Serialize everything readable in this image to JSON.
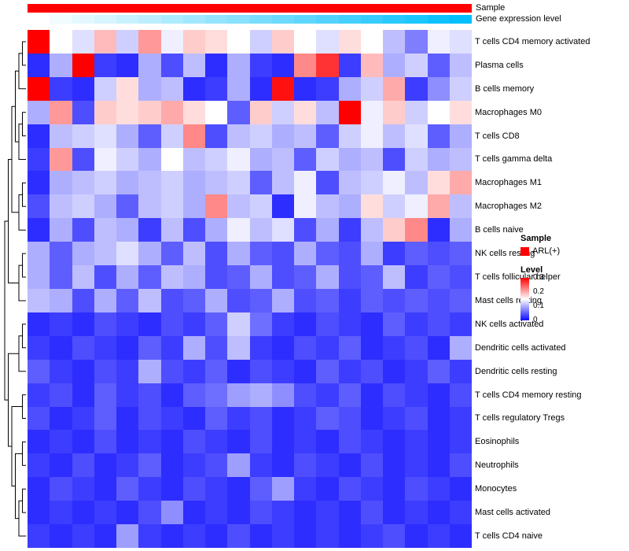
{
  "annotations": {
    "sample_label": "Sample",
    "gene_label": "Gene expression level",
    "sample_color": "#FF0000",
    "gene_gradient_low": "#FFFFFF",
    "gene_gradient_high": "#00BFFF",
    "gene_values": [
      0,
      0.05,
      0.11,
      0.16,
      0.21,
      0.26,
      0.32,
      0.37,
      0.42,
      0.47,
      0.53,
      0.58,
      0.63,
      0.68,
      0.74,
      0.79,
      0.84,
      0.89,
      0.95,
      1.0
    ]
  },
  "legend": {
    "sample_title": "Sample",
    "sample_items": [
      {
        "label": "ARL(+)",
        "color": "#FF0000"
      }
    ],
    "level_title": "Level",
    "level_ticks": [
      "0.3",
      "0.2",
      "0.1",
      "0"
    ]
  },
  "chart_data": {
    "type": "heatmap",
    "title": "",
    "n_cols": 20,
    "col_labels": [],
    "rows": [
      "T cells CD4 memory activated",
      "Plasma cells",
      "B cells memory",
      "Macrophages M0",
      "T cells CD8",
      "T cells gamma delta",
      "Macrophages M1",
      "Macrophages M2",
      "B cells naive",
      "NK cells resting",
      "T cells follicular helper",
      "Mast cells resting",
      "NK cells activated",
      "Dendritic cells activated",
      "Dendritic cells resting",
      "T cells CD4 memory resting",
      "T cells regulatory Tregs",
      "Eosinophils",
      "Neutrophils",
      "Monocytes",
      "Mast cells activated",
      "T cells CD4 naive"
    ],
    "values": [
      [
        0.3,
        0.15,
        0.13,
        0.19,
        0.12,
        0.21,
        0.14,
        0.18,
        0.17,
        0.15,
        0.12,
        0.18,
        0.15,
        0.13,
        0.17,
        0.15,
        0.11,
        0.07,
        0.14,
        0.13
      ],
      [
        0.02,
        0.1,
        0.3,
        0.03,
        0.02,
        0.1,
        0.04,
        0.11,
        0.02,
        0.1,
        0.03,
        0.02,
        0.22,
        0.27,
        0.03,
        0.19,
        0.1,
        0.12,
        0.05,
        0.11
      ],
      [
        0.3,
        0.03,
        0.02,
        0.12,
        0.17,
        0.1,
        0.11,
        0.02,
        0.03,
        0.1,
        0.02,
        0.29,
        0.02,
        0.03,
        0.1,
        0.12,
        0.2,
        0.03,
        0.08,
        0.12
      ],
      [
        0.1,
        0.21,
        0.04,
        0.18,
        0.17,
        0.18,
        0.2,
        0.17,
        0.15,
        0.05,
        0.18,
        0.12,
        0.17,
        0.11,
        0.3,
        0.14,
        0.18,
        0.12,
        0.15,
        0.17
      ],
      [
        0.02,
        0.11,
        0.12,
        0.13,
        0.1,
        0.05,
        0.12,
        0.22,
        0.04,
        0.11,
        0.12,
        0.1,
        0.11,
        0.05,
        0.12,
        0.14,
        0.11,
        0.13,
        0.05,
        0.1
      ],
      [
        0.03,
        0.21,
        0.04,
        0.14,
        0.12,
        0.1,
        0.15,
        0.11,
        0.12,
        0.14,
        0.1,
        0.11,
        0.05,
        0.12,
        0.1,
        0.11,
        0.04,
        0.12,
        0.1,
        0.11
      ],
      [
        0.02,
        0.1,
        0.11,
        0.12,
        0.1,
        0.11,
        0.12,
        0.1,
        0.11,
        0.12,
        0.05,
        0.11,
        0.14,
        0.04,
        0.11,
        0.12,
        0.14,
        0.11,
        0.17,
        0.2
      ],
      [
        0.04,
        0.11,
        0.12,
        0.1,
        0.05,
        0.11,
        0.12,
        0.1,
        0.22,
        0.11,
        0.12,
        0.02,
        0.14,
        0.11,
        0.1,
        0.17,
        0.12,
        0.14,
        0.2,
        0.11
      ],
      [
        0.02,
        0.1,
        0.04,
        0.11,
        0.1,
        0.03,
        0.11,
        0.04,
        0.1,
        0.14,
        0.11,
        0.13,
        0.04,
        0.1,
        0.03,
        0.11,
        0.18,
        0.22,
        0.02,
        0.1
      ],
      [
        0.1,
        0.05,
        0.1,
        0.11,
        0.13,
        0.1,
        0.05,
        0.11,
        0.04,
        0.1,
        0.05,
        0.04,
        0.1,
        0.05,
        0.04,
        0.1,
        0.03,
        0.05,
        0.04,
        0.05
      ],
      [
        0.1,
        0.05,
        0.11,
        0.04,
        0.1,
        0.05,
        0.11,
        0.1,
        0.04,
        0.05,
        0.1,
        0.04,
        0.05,
        0.1,
        0.04,
        0.05,
        0.11,
        0.03,
        0.05,
        0.04
      ],
      [
        0.11,
        0.1,
        0.04,
        0.1,
        0.05,
        0.11,
        0.04,
        0.05,
        0.1,
        0.04,
        0.05,
        0.1,
        0.04,
        0.05,
        0.03,
        0.05,
        0.04,
        0.05,
        0.04,
        0.05
      ],
      [
        0.02,
        0.03,
        0.02,
        0.04,
        0.03,
        0.02,
        0.04,
        0.03,
        0.05,
        0.12,
        0.06,
        0.03,
        0.02,
        0.04,
        0.03,
        0.02,
        0.05,
        0.03,
        0.04,
        0.03
      ],
      [
        0.03,
        0.02,
        0.04,
        0.03,
        0.02,
        0.05,
        0.03,
        0.1,
        0.04,
        0.11,
        0.03,
        0.02,
        0.04,
        0.03,
        0.05,
        0.02,
        0.03,
        0.04,
        0.02,
        0.1
      ],
      [
        0.05,
        0.03,
        0.02,
        0.04,
        0.03,
        0.1,
        0.04,
        0.03,
        0.05,
        0.02,
        0.04,
        0.03,
        0.02,
        0.05,
        0.03,
        0.04,
        0.02,
        0.03,
        0.05,
        0.03
      ],
      [
        0.03,
        0.04,
        0.02,
        0.05,
        0.03,
        0.04,
        0.02,
        0.05,
        0.06,
        0.09,
        0.1,
        0.08,
        0.04,
        0.03,
        0.05,
        0.02,
        0.04,
        0.03,
        0.02,
        0.04
      ],
      [
        0.04,
        0.02,
        0.03,
        0.05,
        0.02,
        0.04,
        0.03,
        0.02,
        0.05,
        0.03,
        0.04,
        0.02,
        0.03,
        0.05,
        0.04,
        0.02,
        0.03,
        0.04,
        0.02,
        0.03
      ],
      [
        0.02,
        0.03,
        0.02,
        0.04,
        0.02,
        0.03,
        0.02,
        0.04,
        0.03,
        0.02,
        0.04,
        0.02,
        0.03,
        0.02,
        0.04,
        0.03,
        0.02,
        0.03,
        0.02,
        0.03
      ],
      [
        0.03,
        0.02,
        0.04,
        0.02,
        0.03,
        0.05,
        0.02,
        0.03,
        0.04,
        0.09,
        0.03,
        0.02,
        0.04,
        0.03,
        0.02,
        0.04,
        0.02,
        0.03,
        0.02,
        0.04
      ],
      [
        0.02,
        0.04,
        0.03,
        0.02,
        0.05,
        0.03,
        0.02,
        0.04,
        0.03,
        0.02,
        0.05,
        0.09,
        0.03,
        0.02,
        0.04,
        0.03,
        0.02,
        0.04,
        0.03,
        0.02
      ],
      [
        0.02,
        0.03,
        0.02,
        0.03,
        0.02,
        0.04,
        0.08,
        0.02,
        0.03,
        0.02,
        0.04,
        0.03,
        0.02,
        0.03,
        0.02,
        0.04,
        0.02,
        0.03,
        0.02,
        0.03
      ],
      [
        0.03,
        0.02,
        0.03,
        0.02,
        0.09,
        0.03,
        0.02,
        0.03,
        0.02,
        0.04,
        0.02,
        0.03,
        0.02,
        0.03,
        0.02,
        0.03,
        0.04,
        0.02,
        0.03,
        0.02
      ]
    ],
    "color_scale": {
      "domain": [
        0,
        0.15,
        0.3
      ],
      "colors": [
        "#0D0DFF",
        "#FFFFFF",
        "#FF0000"
      ]
    },
    "row_dendrogram_merges": [
      [
        -1,
        -2
      ],
      [
        1,
        -3
      ],
      [
        -4,
        -5
      ],
      [
        3,
        -6
      ],
      [
        2,
        4
      ],
      [
        -7,
        -8
      ],
      [
        6,
        -9
      ],
      [
        5,
        7
      ],
      [
        -10,
        -11
      ],
      [
        9,
        -12
      ],
      [
        8,
        10
      ],
      [
        -13,
        -14
      ],
      [
        12,
        -15
      ],
      [
        -16,
        -17
      ],
      [
        -18,
        -19
      ],
      [
        -20,
        -21
      ],
      [
        16,
        -22
      ],
      [
        15,
        17
      ],
      [
        14,
        18
      ],
      [
        13,
        19
      ],
      [
        11,
        20
      ]
    ],
    "legend_position": "right",
    "grid": false
  }
}
